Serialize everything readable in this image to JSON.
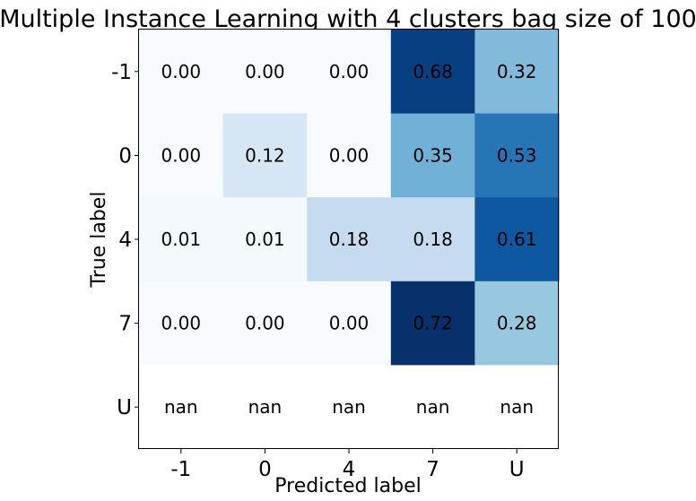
{
  "chart_data": {
    "type": "heatmap",
    "title": "Multiple Instance Learning with 4 clusters bag size of 100",
    "xlabel": "Predicted label",
    "ylabel": "True label",
    "x_categories": [
      "-1",
      "0",
      "4",
      "7",
      "U"
    ],
    "y_categories": [
      "-1",
      "0",
      "4",
      "7",
      "U"
    ],
    "values": [
      [
        0.0,
        0.0,
        0.0,
        0.68,
        0.32
      ],
      [
        0.0,
        0.12,
        0.0,
        0.35,
        0.53
      ],
      [
        0.01,
        0.01,
        0.18,
        0.18,
        0.61
      ],
      [
        0.0,
        0.0,
        0.0,
        0.72,
        0.28
      ],
      [
        null,
        null,
        null,
        null,
        null
      ]
    ],
    "cell_labels": [
      [
        "0.00",
        "0.00",
        "0.00",
        "0.68",
        "0.32"
      ],
      [
        "0.00",
        "0.12",
        "0.00",
        "0.35",
        "0.53"
      ],
      [
        "0.01",
        "0.01",
        "0.18",
        "0.18",
        "0.61"
      ],
      [
        "0.00",
        "0.00",
        "0.00",
        "0.72",
        "0.28"
      ],
      [
        "nan",
        "nan",
        "nan",
        "nan",
        "nan"
      ]
    ],
    "colormap": "Blues",
    "vmin": 0.0,
    "vmax": 0.72,
    "grid": false
  }
}
